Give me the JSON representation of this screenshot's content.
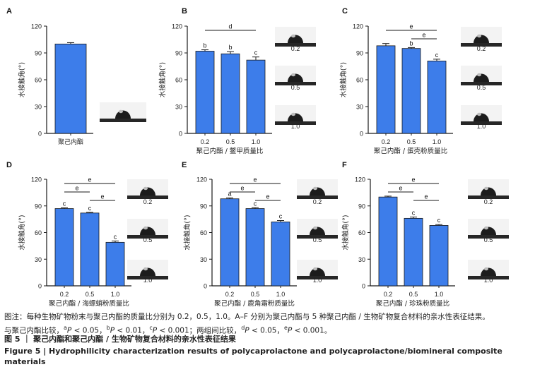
{
  "colors": {
    "bar": "#3d7dea",
    "bar_edge": "#1a1a1a",
    "axis": "#1a1a1a",
    "drop": "#1c1c1c",
    "surface": "#262626"
  },
  "chart_data": [
    {
      "panel": "A",
      "type": "bar",
      "ylabel": "水接触角(°)",
      "ylim": [
        0,
        120
      ],
      "yticks": [
        "0",
        "30",
        "60",
        "90",
        "120"
      ],
      "categories": [
        "聚己内酯"
      ],
      "values": [
        100
      ],
      "errors": [
        1.5
      ],
      "letters": [
        ""
      ],
      "xlabel": "",
      "brackets": [],
      "images": [
        ""
      ]
    },
    {
      "panel": "B",
      "type": "bar",
      "ylabel": "水接触角(°)",
      "ylim": [
        0,
        120
      ],
      "yticks": [
        "0",
        "30",
        "60",
        "90",
        "120"
      ],
      "categories": [
        "0.2",
        "0.5",
        "1.0"
      ],
      "values": [
        92,
        89,
        82
      ],
      "errors": [
        1.5,
        2.5,
        3.5
      ],
      "letters": [
        "b",
        "b",
        "c"
      ],
      "xlabel": "聚己内酯 / 鳖甲质量比",
      "brackets": [
        {
          "from": 0,
          "to": 2,
          "label": "d"
        }
      ],
      "images": [
        "0.2",
        "0.5",
        "1.0"
      ]
    },
    {
      "panel": "C",
      "type": "bar",
      "ylabel": "水接触角(°)",
      "ylim": [
        0,
        120
      ],
      "yticks": [
        "0",
        "30",
        "60",
        "90",
        "120"
      ],
      "categories": [
        "0.2",
        "0.5",
        "1.0"
      ],
      "values": [
        98,
        95,
        81
      ],
      "errors": [
        2.5,
        1.0,
        2.0
      ],
      "letters": [
        "",
        "b",
        "c"
      ],
      "xlabel": "聚己内酯 / 蛋壳粉质量比",
      "brackets": [
        {
          "from": 0,
          "to": 2,
          "label": "e"
        },
        {
          "from": 1,
          "to": 2,
          "label": "e"
        }
      ],
      "images": [
        "0.2",
        "0.5",
        "1.0"
      ]
    },
    {
      "panel": "D",
      "type": "bar",
      "ylabel": "水接触角(°)",
      "ylim": [
        0,
        120
      ],
      "yticks": [
        "0",
        "30",
        "60",
        "90",
        "120"
      ],
      "categories": [
        "0.2",
        "0.5",
        "1.0"
      ],
      "values": [
        87,
        82,
        49
      ],
      "errors": [
        0.8,
        0.8,
        1.5
      ],
      "letters": [
        "c",
        "c",
        "c"
      ],
      "xlabel": "聚己内酯 / 海螵蛸粉质量比",
      "brackets": [
        {
          "from": 0,
          "to": 2,
          "label": "e"
        },
        {
          "from": 0,
          "to": 1,
          "label": "e"
        },
        {
          "from": 1,
          "to": 2,
          "label": "e"
        }
      ],
      "images": [
        "0.2",
        "0.5",
        "1.0"
      ]
    },
    {
      "panel": "E",
      "type": "bar",
      "ylabel": "水接触角(°)",
      "ylim": [
        0,
        120
      ],
      "yticks": [
        "0",
        "30",
        "60",
        "90",
        "120"
      ],
      "categories": [
        "0.2",
        "0.5",
        "1.0"
      ],
      "values": [
        98,
        87,
        72
      ],
      "errors": [
        1.0,
        1.0,
        1.5
      ],
      "letters": [
        "a",
        "c",
        "c"
      ],
      "xlabel": "聚己内酯 / 鹿角霜粉质量比",
      "brackets": [
        {
          "from": 0,
          "to": 2,
          "label": "e"
        },
        {
          "from": 0,
          "to": 1,
          "label": "e"
        },
        {
          "from": 1,
          "to": 2,
          "label": "e"
        }
      ],
      "images": [
        "0.2",
        "0.5",
        "1.0"
      ]
    },
    {
      "panel": "F",
      "type": "bar",
      "ylabel": "水接触角(°)",
      "ylim": [
        0,
        120
      ],
      "yticks": [
        "0",
        "30",
        "60",
        "90",
        "120"
      ],
      "categories": [
        "0.2",
        "0.5",
        "1.0"
      ],
      "values": [
        100,
        76,
        68
      ],
      "errors": [
        1.0,
        1.5,
        1.0
      ],
      "letters": [
        "",
        "c",
        "c"
      ],
      "xlabel": "聚己内酯 / 珍珠粉质量比",
      "brackets": [
        {
          "from": 0,
          "to": 2,
          "label": "e"
        },
        {
          "from": 0,
          "to": 1,
          "label": "e"
        },
        {
          "from": 1,
          "to": 2,
          "label": "e"
        }
      ],
      "images": [
        "0.2",
        "0.5",
        "1.0"
      ]
    }
  ],
  "caption": {
    "note_start": "图注：每种生物矿物粉末与聚己内酯的质量比分别为 0.2，0.5，1.0。A–F 分别为聚己内酯与 5 种聚己内酯 / 生物矿物复合材料的亲水性表征结果。",
    "note_compare": "与聚己内酯比较，",
    "a_sup": "a",
    "a_p": "P",
    "a_text": " < 0.05，",
    "b_sup": "b",
    "b_p": "P",
    "b_text": " < 0.01，",
    "c_sup": "c",
    "c_p": "P",
    "c_text": " < 0.001；两组间比较，",
    "d_sup": "d",
    "d_p": "P",
    "d_text": " < 0.05，",
    "e_sup": "e",
    "e_p": "P",
    "e_text": " < 0.001。",
    "title_zh": "图 5 ｜ 聚己内酯和聚己内酯 / 生物矿物复合材料的亲水性表征结果",
    "title_en": "Figure 5 | Hydrophilicity characterization results of polycaprolactone and polycaprolactone/biomineral composite materials"
  }
}
